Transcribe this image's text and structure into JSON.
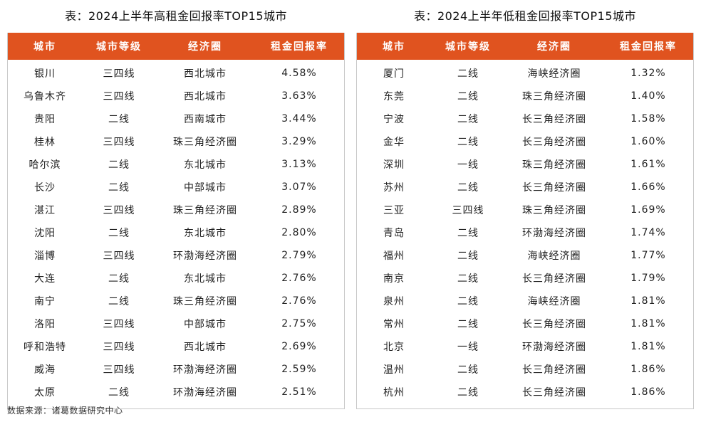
{
  "left_table": {
    "title": "表：2024上半年高租金回报率TOP15城市",
    "headers": [
      "城市",
      "城市等级",
      "经济圈",
      "租金回报率"
    ],
    "rows": [
      [
        "银川",
        "三四线",
        "西北城市",
        "4.58%"
      ],
      [
        "乌鲁木齐",
        "三四线",
        "西北城市",
        "3.63%"
      ],
      [
        "贵阳",
        "二线",
        "西南城市",
        "3.44%"
      ],
      [
        "桂林",
        "三四线",
        "珠三角经济圈",
        "3.29%"
      ],
      [
        "哈尔滨",
        "二线",
        "东北城市",
        "3.13%"
      ],
      [
        "长沙",
        "二线",
        "中部城市",
        "3.07%"
      ],
      [
        "湛江",
        "三四线",
        "珠三角经济圈",
        "2.89%"
      ],
      [
        "沈阳",
        "二线",
        "东北城市",
        "2.80%"
      ],
      [
        "淄博",
        "三四线",
        "环渤海经济圈",
        "2.79%"
      ],
      [
        "大连",
        "二线",
        "东北城市",
        "2.76%"
      ],
      [
        "南宁",
        "二线",
        "珠三角经济圈",
        "2.76%"
      ],
      [
        "洛阳",
        "三四线",
        "中部城市",
        "2.75%"
      ],
      [
        "呼和浩特",
        "三四线",
        "西北城市",
        "2.69%"
      ],
      [
        "威海",
        "三四线",
        "环渤海经济圈",
        "2.59%"
      ],
      [
        "太原",
        "二线",
        "环渤海经济圈",
        "2.51%"
      ]
    ]
  },
  "right_table": {
    "title": "表：2024上半年低租金回报率TOP15城市",
    "headers": [
      "城市",
      "城市等级",
      "经济圈",
      "租金回报率"
    ],
    "rows": [
      [
        "厦门",
        "二线",
        "海峡经济圈",
        "1.32%"
      ],
      [
        "东莞",
        "二线",
        "珠三角经济圈",
        "1.40%"
      ],
      [
        "宁波",
        "二线",
        "长三角经济圈",
        "1.58%"
      ],
      [
        "金华",
        "二线",
        "长三角经济圈",
        "1.60%"
      ],
      [
        "深圳",
        "一线",
        "珠三角经济圈",
        "1.61%"
      ],
      [
        "苏州",
        "二线",
        "长三角经济圈",
        "1.66%"
      ],
      [
        "三亚",
        "三四线",
        "珠三角经济圈",
        "1.69%"
      ],
      [
        "青岛",
        "二线",
        "环渤海经济圈",
        "1.74%"
      ],
      [
        "福州",
        "二线",
        "海峡经济圈",
        "1.77%"
      ],
      [
        "南京",
        "二线",
        "长三角经济圈",
        "1.79%"
      ],
      [
        "泉州",
        "二线",
        "海峡经济圈",
        "1.81%"
      ],
      [
        "常州",
        "二线",
        "长三角经济圈",
        "1.81%"
      ],
      [
        "北京",
        "一线",
        "环渤海经济圈",
        "1.81%"
      ],
      [
        "温州",
        "二线",
        "长三角经济圈",
        "1.86%"
      ],
      [
        "杭州",
        "二线",
        "长三角经济圈",
        "1.86%"
      ]
    ]
  },
  "source": "数据来源：诸葛数据研究中心",
  "colors": {
    "header_bg": "#e0531f",
    "header_text": "#ffffff",
    "border": "#c9c9c9"
  }
}
